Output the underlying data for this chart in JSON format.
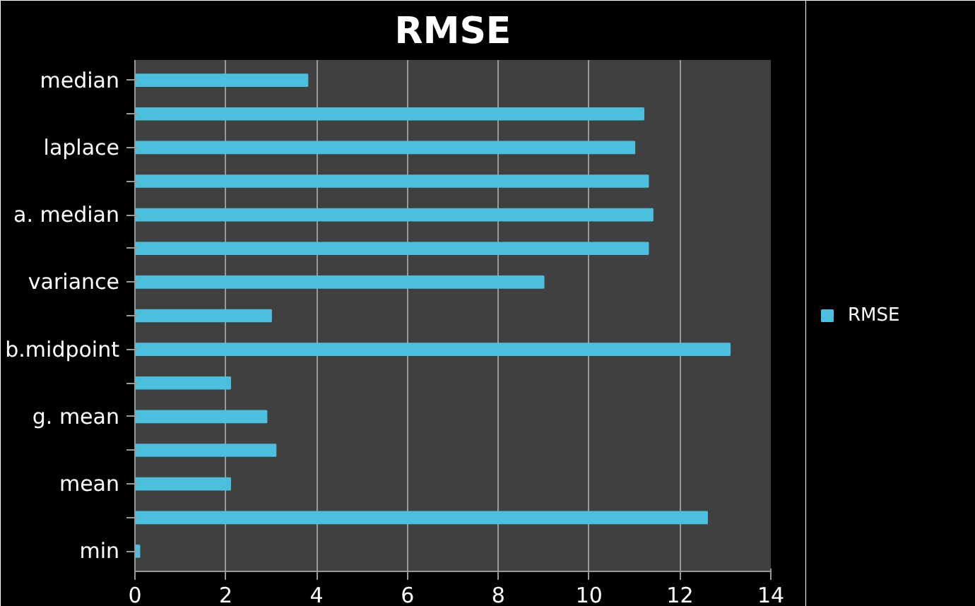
{
  "chart_data": {
    "type": "bar",
    "orientation": "horizontal",
    "title": "RMSE",
    "categories": [
      "median",
      null,
      "laplace",
      null,
      "a. median",
      null,
      "variance",
      null,
      "b.midpoint",
      null,
      "g. mean",
      null,
      "mean",
      null,
      "min"
    ],
    "series": [
      {
        "name": "RMSE",
        "color": "#4bc0de",
        "values": [
          3.8,
          11.2,
          11.0,
          11.3,
          11.4,
          11.3,
          9.0,
          3.0,
          13.1,
          2.1,
          2.9,
          3.1,
          2.1,
          12.6,
          0.1
        ]
      }
    ],
    "xlim": [
      0,
      14
    ],
    "xticks": [
      0,
      2,
      4,
      6,
      8,
      10,
      12,
      14
    ],
    "grid": "x",
    "legend": "right"
  }
}
